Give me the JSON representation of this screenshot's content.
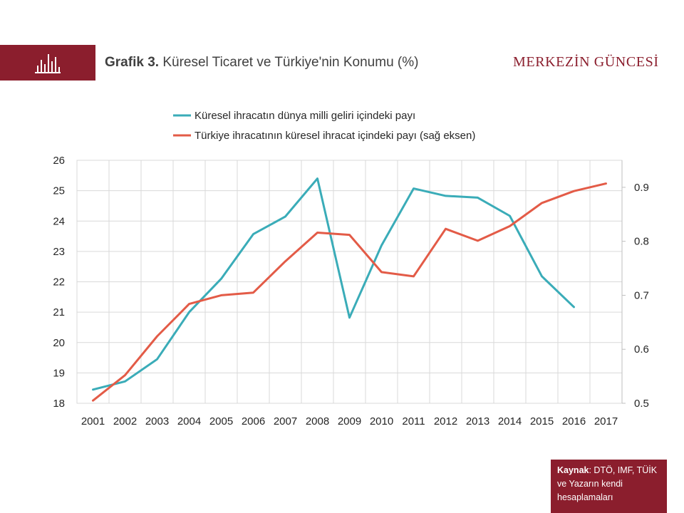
{
  "header": {
    "title_bold": "Grafik 3.",
    "title_rest": " Küresel Ticaret  ve Türkiye'nin  Konumu (%)",
    "brand": "MERKEZİN GÜNCESİ"
  },
  "source": {
    "label": "Kaynak",
    "text": ": DTÖ, IMF, TÜİK ve Yazarın kendi hesaplamaları"
  },
  "colors": {
    "accent": "#8b1e2d",
    "series_left": "#3aacb8",
    "series_right": "#e35b47"
  },
  "chart_data": {
    "type": "line",
    "title": "",
    "x": [
      "2001",
      "2002",
      "2003",
      "2004",
      "2005",
      "2006",
      "2007",
      "2008",
      "2009",
      "2010",
      "2011",
      "2012",
      "2013",
      "2014",
      "2015",
      "2016",
      "2017"
    ],
    "series": [
      {
        "name": "Küresel ihracatın dünya milli geliri içindeki payı",
        "axis": "left",
        "color": "#3aacb8",
        "values": [
          18.45,
          18.72,
          19.45,
          21.0,
          22.1,
          23.57,
          24.15,
          25.4,
          20.82,
          23.2,
          25.07,
          24.83,
          24.77,
          24.17,
          22.18,
          21.17,
          null
        ]
      },
      {
        "name": "Türkiye ihracatının küresel ihracat içindeki payı (sağ eksen)",
        "axis": "right",
        "color": "#e35b47",
        "values": [
          0.505,
          0.552,
          0.624,
          0.684,
          0.7,
          0.705,
          0.763,
          0.816,
          0.812,
          0.743,
          0.735,
          0.823,
          0.801,
          0.828,
          0.871,
          0.893,
          0.907
        ]
      }
    ],
    "left_axis": {
      "min": 18,
      "max": 26,
      "ticks": [
        18,
        19,
        20,
        21,
        22,
        23,
        24,
        25,
        26
      ]
    },
    "right_axis": {
      "min": 0.5,
      "max": 0.95,
      "ticks": [
        0.5,
        0.6,
        0.7,
        0.8,
        0.9
      ],
      "tick_labels": [
        "0.5",
        "0.6",
        "0.7",
        "0.8",
        "0.9"
      ]
    },
    "grid": true,
    "legend_position": "top"
  }
}
